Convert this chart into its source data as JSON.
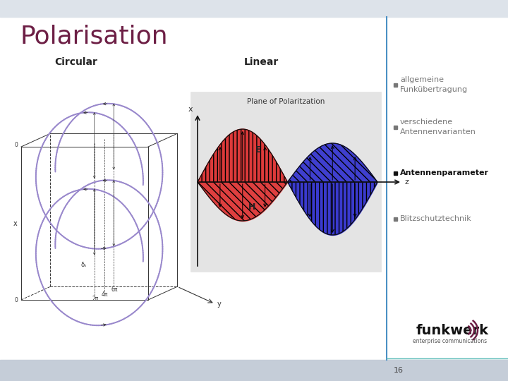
{
  "title": "Polarisation",
  "title_color": "#6d1f45",
  "title_fontsize": 26,
  "header_bg": "#dde3ea",
  "main_bg": "#ffffff",
  "footer_bg": "#c5cdd8",
  "footer_number": "16",
  "divider_color": "#4a90c4",
  "label_circular": "Circular",
  "label_linear": "Linear",
  "bullet_items": [
    {
      "text": "allgemeine\nFunkübertragung",
      "bold": false
    },
    {
      "text": "verschiedene\nAntennenvarianten",
      "bold": false
    },
    {
      "text": "Antennenparameter",
      "bold": true
    },
    {
      "text": "Blitzschutztechnik",
      "bold": false
    }
  ],
  "bullet_color": "#777777",
  "bullet_bold_color": "#111111",
  "funkwerk_text": "funkwerk",
  "funkwerk_subtext": "enterprise communications"
}
